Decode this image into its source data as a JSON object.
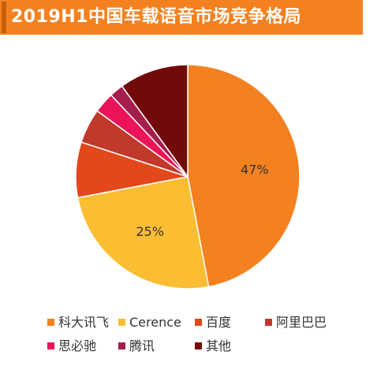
{
  "header": {
    "title": "2019H1中国车载语音市场竞争格局"
  },
  "chart_data": {
    "type": "pie",
    "title": "2019H1中国车载语音市场竞争格局",
    "slices": [
      {
        "name": "科大讯飞",
        "value": 47,
        "label": "47%",
        "color": "#f4811f"
      },
      {
        "name": "Cerence",
        "value": 25,
        "label": "25%",
        "color": "#fbbd32"
      },
      {
        "name": "百度",
        "value": 8,
        "label": "",
        "color": "#e2481b"
      },
      {
        "name": "阿里巴巴",
        "value": 5,
        "label": "",
        "color": "#c0392b"
      },
      {
        "name": "思必驰",
        "value": 3,
        "label": "",
        "color": "#ec1458"
      },
      {
        "name": "腾讯",
        "value": 2,
        "label": "",
        "color": "#a51e4b"
      },
      {
        "name": "其他",
        "value": 10,
        "label": "",
        "color": "#730a0a"
      }
    ],
    "legend_position": "bottom"
  }
}
